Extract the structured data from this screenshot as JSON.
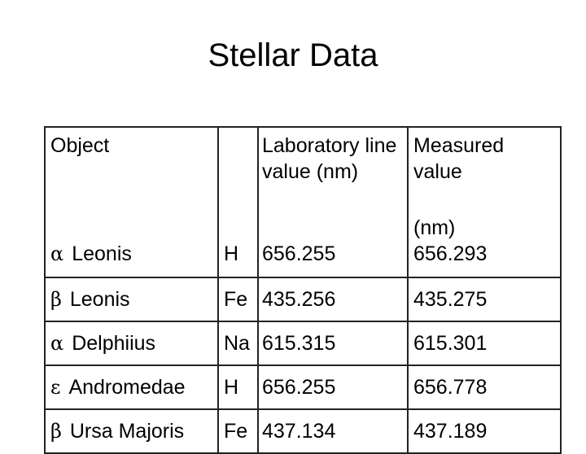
{
  "title": "Stellar Data",
  "table": {
    "headers": {
      "object": "Object",
      "element": "",
      "laboratory": "Laboratory line value (nm)",
      "measured_top": "Measured value",
      "measured_unit": "(nm)"
    },
    "rows": [
      {
        "symbol": "α",
        "name": "Leonis",
        "element": "H",
        "lab": "656.255",
        "measured": "656.293"
      },
      {
        "symbol": "β",
        "name": "Leonis",
        "element": "Fe",
        "lab": "435.256",
        "measured": "435.275"
      },
      {
        "symbol": "α",
        "name": "Delphiius",
        "element": "Na",
        "lab": "615.315",
        "measured": "615.301"
      },
      {
        "symbol": "ε",
        "name": "Andromedae",
        "element": "H",
        "lab": "656.255",
        "measured": "656.778"
      },
      {
        "symbol": "β",
        "name": "Ursa Majoris",
        "element": "Fe",
        "lab": "437.134",
        "measured": "437.189"
      }
    ]
  }
}
